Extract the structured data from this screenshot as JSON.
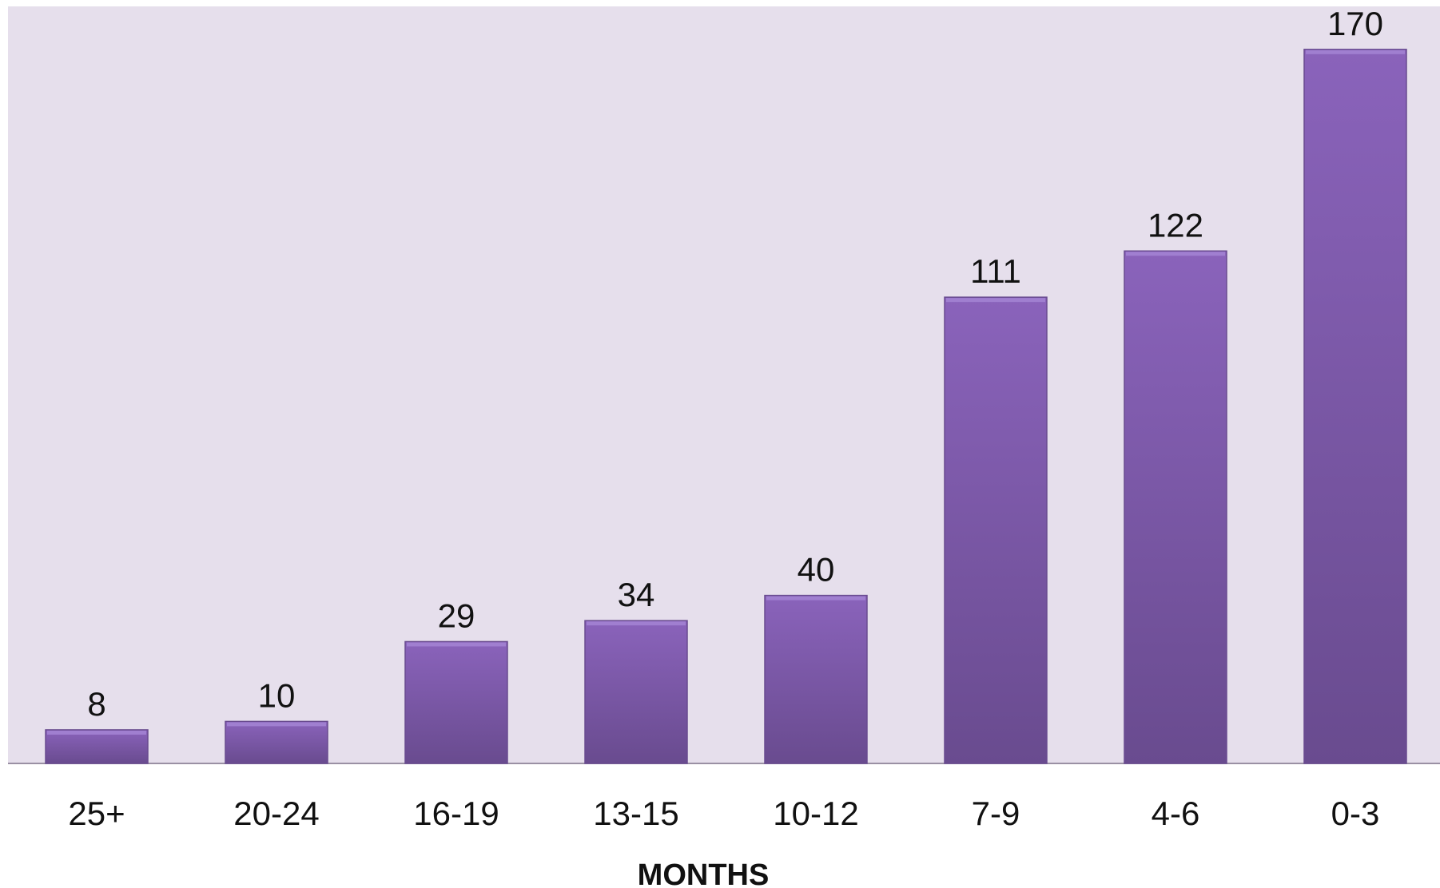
{
  "chart_data": {
    "type": "bar",
    "categories": [
      "25+",
      "20-24",
      "16-19",
      "13-15",
      "10-12",
      "7-9",
      "4-6",
      "0-3"
    ],
    "values": [
      8,
      10,
      29,
      34,
      40,
      111,
      122,
      170
    ],
    "value_labels": [
      "8",
      "10",
      "29",
      "34",
      "40",
      "111",
      "122",
      "170"
    ],
    "title": "",
    "xlabel": "MONTHS",
    "ylabel": "",
    "ylim": [
      0,
      180
    ],
    "grid": false,
    "legend": "none"
  },
  "colors": {
    "plot_background": "#e6dfec",
    "bar_top": "#8a63bb",
    "bar_bottom": "#694b8f",
    "bar_highlight": "#a07fd0",
    "baseline": "#9a90a4"
  }
}
